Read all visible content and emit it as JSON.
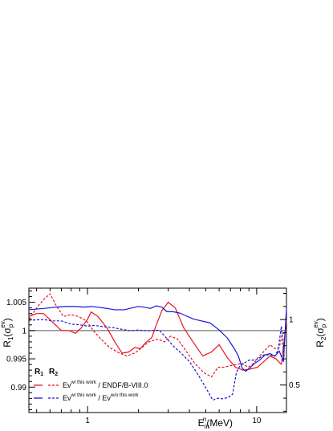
{
  "chart_data": {
    "type": "line",
    "x_scale": "log",
    "xlim": [
      0.45,
      15
    ],
    "ylim_left": [
      0.9855,
      1.0075
    ],
    "ylim_right": [
      0.29,
      1.24
    ],
    "xlabel": {
      "main": "E",
      "sub": "in",
      "sup": "n",
      "rest": "(MeV)"
    },
    "ylabel_left": {
      "main": "R",
      "sub": "1",
      "rest": "(σ",
      "sub2": "p",
      "sup": "ev",
      "close": ")"
    },
    "ylabel_right": {
      "main": "R",
      "sub": "2",
      "rest": "(σ",
      "sub2": "p",
      "sup": "ev",
      "close": ")"
    },
    "x_ticks": [
      {
        "value": 1,
        "label": "1"
      },
      {
        "value": 10,
        "label": "10"
      }
    ],
    "y_ticks_left": [
      {
        "value": 1.005,
        "label": "1.005"
      },
      {
        "value": 1.0,
        "label": "1"
      },
      {
        "value": 0.995,
        "label": "0.995"
      },
      {
        "value": 0.99,
        "label": "0.99"
      }
    ],
    "y_ticks_right": [
      {
        "value": 1,
        "label": "1"
      },
      {
        "value": 0.5,
        "label": "0.5"
      }
    ],
    "reference_line": 1.0,
    "legend": {
      "placement": "bottom-left",
      "headers": [
        "R",
        "R"
      ],
      "header_subs": [
        "1",
        "2"
      ],
      "rows": [
        {
          "color": "#e8121e",
          "label_main": "Ev",
          "label_sup": "w/ this work",
          "label_rest": " / ENDF/B-VIII.0"
        },
        {
          "color": "#1a14d6",
          "label_main": "Ev",
          "label_sup": "w/ this work",
          "label_mid": " / Ev",
          "label_sup2": "w/o this work"
        }
      ]
    },
    "series": [
      {
        "axis": "left",
        "color": "#e8121e",
        "style": "solid",
        "x": [
          0.45,
          0.5,
          0.55,
          0.62,
          0.7,
          0.78,
          0.85,
          0.92,
          1.0,
          1.05,
          1.15,
          1.3,
          1.45,
          1.6,
          1.75,
          1.9,
          2.05,
          2.2,
          2.4,
          2.55,
          2.75,
          3.0,
          3.3,
          3.7,
          4.2,
          4.8,
          5.4,
          6.0,
          6.7,
          7.5,
          8.3,
          9.2,
          10.1,
          11.0,
          12.0,
          13.0,
          14.0,
          15.0
        ],
        "y": [
          1.0025,
          1.003,
          1.003,
          1.0015,
          1.0,
          1.0,
          0.9995,
          1.0005,
          1.002,
          1.0033,
          1.0025,
          1.0005,
          0.998,
          0.996,
          0.9962,
          0.997,
          0.9968,
          0.9978,
          0.9988,
          1.001,
          1.0035,
          1.005,
          1.004,
          1.0005,
          0.998,
          0.9955,
          0.9962,
          0.9975,
          0.9952,
          0.9935,
          0.993,
          0.9932,
          0.9935,
          0.9945,
          0.9955,
          0.995,
          0.994,
          1.0018
        ]
      },
      {
        "axis": "left",
        "color": "#e8121e",
        "style": "dashed",
        "x": [
          0.45,
          0.5,
          0.55,
          0.6,
          0.65,
          0.72,
          0.8,
          0.88,
          0.95,
          1.0,
          1.08,
          1.2,
          1.35,
          1.5,
          1.7,
          1.9,
          2.1,
          2.3,
          2.6,
          2.85,
          3.1,
          3.4,
          3.8,
          4.3,
          4.9,
          5.4,
          5.9,
          6.4,
          7.0,
          7.6,
          8.2,
          8.9,
          9.6,
          10.4,
          11.2,
          12.0,
          12.8,
          13.6,
          14.2,
          15.0
        ],
        "y": [
          1.002,
          1.004,
          1.0055,
          1.0065,
          1.0045,
          1.0025,
          1.0028,
          1.0025,
          1.002,
          1.0015,
          1.0,
          0.9985,
          0.997,
          0.9962,
          0.9955,
          0.996,
          0.997,
          0.998,
          0.9985,
          0.998,
          0.999,
          0.9985,
          0.9965,
          0.9942,
          0.9925,
          0.9918,
          0.9935,
          0.9935,
          0.9938,
          0.994,
          0.9942,
          0.9935,
          0.9942,
          0.9955,
          0.9965,
          0.9975,
          0.9968,
          0.997,
          0.9995,
          0.9995
        ]
      },
      {
        "axis": "right",
        "color": "#1a14d6",
        "style": "solid",
        "x": [
          0.45,
          0.55,
          0.65,
          0.75,
          0.85,
          0.95,
          1.05,
          1.15,
          1.3,
          1.45,
          1.65,
          1.85,
          2.0,
          2.15,
          2.35,
          2.55,
          2.75,
          2.95,
          3.2,
          3.5,
          3.8,
          4.2,
          4.7,
          5.3,
          6.0,
          6.7,
          7.4,
          7.8,
          8.2,
          8.6,
          9.1,
          9.7,
          10.4,
          11.2,
          12.0,
          12.8,
          13.6,
          14.4,
          15.0
        ],
        "y": [
          1.075,
          1.085,
          1.095,
          1.1,
          1.1,
          1.095,
          1.1,
          1.095,
          1.085,
          1.075,
          1.075,
          1.09,
          1.1,
          1.095,
          1.085,
          1.105,
          1.095,
          1.06,
          1.06,
          1.05,
          1.03,
          1.005,
          0.99,
          0.975,
          0.92,
          0.86,
          0.775,
          0.72,
          0.63,
          0.605,
          0.63,
          0.665,
          0.69,
          0.73,
          0.74,
          0.72,
          0.76,
          0.68,
          1.09
        ]
      },
      {
        "axis": "right",
        "color": "#1a14d6",
        "style": "dashed",
        "x": [
          0.45,
          0.55,
          0.62,
          0.7,
          0.8,
          0.9,
          1.0,
          1.1,
          1.25,
          1.4,
          1.6,
          1.8,
          2.0,
          2.2,
          2.4,
          2.65,
          2.9,
          3.2,
          3.6,
          4.0,
          4.5,
          5.0,
          5.5,
          5.9,
          6.3,
          6.8,
          7.2,
          7.6,
          8.0,
          8.5,
          9.0,
          9.5,
          10.2,
          11.0,
          12.0,
          12.8,
          13.4,
          14.0,
          14.5,
          15.0
        ],
        "y": [
          0.995,
          1.0,
          0.99,
          0.99,
          0.965,
          0.96,
          0.95,
          0.955,
          0.945,
          0.94,
          0.925,
          0.915,
          0.92,
          0.915,
          0.915,
          0.92,
          0.865,
          0.8,
          0.74,
          0.68,
          0.58,
          0.48,
          0.385,
          0.4,
          0.395,
          0.405,
          0.43,
          0.6,
          0.65,
          0.67,
          0.69,
          0.69,
          0.7,
          0.73,
          0.73,
          0.72,
          0.77,
          0.95,
          0.72,
          0.72
        ]
      }
    ]
  }
}
